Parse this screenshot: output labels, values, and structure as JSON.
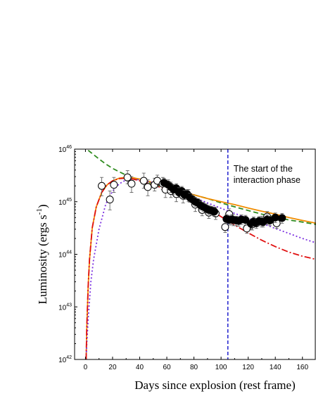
{
  "chart_data": {
    "type": "scatter",
    "title": "",
    "xlabel": "Days since explosion (rest frame)",
    "ylabel_main": "Luminosity (ergs s",
    "ylabel_sup": "-1",
    "ylabel_close": ")",
    "xlim": [
      -8,
      170
    ],
    "ylim": [
      1e+42,
      1e+46
    ],
    "yscale": "log",
    "x_ticks": [
      0,
      20,
      40,
      60,
      80,
      100,
      120,
      140,
      160
    ],
    "y_ticks": [
      {
        "value": 1e+42,
        "base": "10",
        "exp": "42"
      },
      {
        "value": 1e+43,
        "base": "10",
        "exp": "43"
      },
      {
        "value": 1e+44,
        "base": "10",
        "exp": "44"
      },
      {
        "value": 1e+45,
        "base": "10",
        "exp": "45"
      },
      {
        "value": 1e+46,
        "base": "10",
        "exp": "46"
      }
    ],
    "annotations": [
      {
        "line1": "The start of the",
        "line2": "interaction phase",
        "x": 105
      }
    ],
    "vertical_line": {
      "x": 105,
      "color": "#2a2ad0"
    },
    "series": [
      {
        "style": "line",
        "color": "#2e8b1e",
        "dash": "7,4",
        "x": [
          2,
          5,
          10,
          15,
          20,
          25,
          30,
          40,
          50,
          60,
          70,
          80,
          90,
          100,
          110,
          120,
          130,
          140,
          150,
          160,
          170
        ],
        "y": [
          9.5e+45,
          8.2e+45,
          6.5e+45,
          5.2e+45,
          4.3e+45,
          3.7e+45,
          3.2e+45,
          2.6e+45,
          2.2e+45,
          1.85e+45,
          1.6e+45,
          1.35e+45,
          1.15e+45,
          9.5e+44,
          8e+44,
          6.8e+44,
          5.8e+44,
          5.1e+44,
          4.5e+44,
          4.1e+44,
          3.7e+44
        ]
      },
      {
        "style": "line",
        "color": "#f08c00",
        "dash": "",
        "x": [
          0.5,
          1,
          2,
          3,
          5,
          8,
          12,
          16,
          20,
          25,
          30,
          35,
          40,
          45,
          50,
          55,
          60,
          70,
          80,
          90,
          100,
          110,
          120,
          130,
          140,
          150,
          160,
          170
        ],
        "y": [
          1e+42,
          4e+42,
          2.5e+43,
          8e+43,
          3.2e+44,
          8e+44,
          1.5e+45,
          2.1e+45,
          2.5e+45,
          2.8e+45,
          2.9e+45,
          2.85e+45,
          2.7e+45,
          2.5e+45,
          2.3e+45,
          2.1e+45,
          1.9e+45,
          1.6e+45,
          1.35e+45,
          1.15e+45,
          1e+45,
          8.8e+44,
          7.6e+44,
          6.6e+44,
          5.8e+44,
          5e+44,
          4.4e+44,
          3.9e+44
        ]
      },
      {
        "style": "line",
        "color": "#7b2fe0",
        "dash": "2,3",
        "x": [
          0.5,
          1,
          2,
          4,
          6,
          10,
          15,
          20,
          25,
          30,
          35,
          40,
          50,
          60,
          70,
          80,
          90,
          100,
          110,
          120,
          130,
          140,
          150,
          160,
          170
        ],
        "y": [
          1e+42,
          2e+42,
          6e+42,
          3e+43,
          8e+43,
          3e+44,
          9e+44,
          1.6e+45,
          2.2e+45,
          2.6e+45,
          2.7e+45,
          2.6e+45,
          2.3e+45,
          1.9e+45,
          1.5e+45,
          1.2e+45,
          9.5e+44,
          7.5e+44,
          6e+44,
          4.8e+44,
          3.9e+44,
          3.1e+44,
          2.5e+44,
          2e+44,
          1.65e+44
        ]
      },
      {
        "style": "line",
        "color": "#e01010",
        "dash": "9,3,2,3",
        "x": [
          0.5,
          1,
          2,
          3,
          5,
          8,
          12,
          16,
          20,
          25,
          30,
          35,
          40,
          50,
          60,
          70,
          80,
          90,
          100,
          110,
          120,
          130,
          140,
          150,
          160,
          170
        ],
        "y": [
          1e+42,
          4e+42,
          2.5e+43,
          8e+43,
          3.2e+44,
          8e+44,
          1.5e+45,
          2.1e+45,
          2.5e+45,
          2.75e+45,
          2.8e+45,
          2.7e+45,
          2.5e+45,
          2.1e+45,
          1.7e+45,
          1.35e+45,
          1.05e+45,
          7.5e+44,
          5.2e+44,
          3.6e+44,
          2.55e+44,
          1.85e+44,
          1.4e+44,
          1.1e+44,
          9.2e+43,
          8e+43
        ]
      },
      {
        "style": "open",
        "x": [
          12,
          18,
          21,
          31,
          34,
          43,
          46,
          51,
          53,
          57,
          59,
          63,
          67,
          72,
          76,
          81,
          86,
          91,
          96,
          103,
          106,
          109,
          119,
          123,
          130,
          134,
          141
        ],
        "y": [
          2e+45,
          1.1e+45,
          2.1e+45,
          2.9e+45,
          2.2e+45,
          2.5e+45,
          1.9e+45,
          2.1e+45,
          2.5e+45,
          2.2e+45,
          1.7e+45,
          1.6e+45,
          1.4e+45,
          1.3e+45,
          1.3e+45,
          8.8e+44,
          7e+44,
          6.2e+44,
          6e+44,
          3.3e+44,
          5.8e+44,
          4.5e+44,
          3.1e+44,
          3.7e+44,
          4.2e+44,
          5.2e+44,
          3.9e+44
        ],
        "yerr_low": [
          1.3e+45,
          7e+44,
          1.5e+45,
          2.2e+45,
          1.5e+45,
          1.8e+45,
          1.3e+45,
          1.6e+45,
          1.9e+45,
          1.7e+45,
          1.2e+45,
          1.2e+45,
          1e+45,
          9.5e+44,
          1e+45,
          6.5e+44,
          5.4e+44,
          4.8e+44,
          4.6e+44,
          2.6e+44,
          4.6e+44,
          3.5e+44,
          2.5e+44,
          2.9e+44,
          3.3e+44,
          4.1e+44,
          3.1e+44
        ],
        "yerr_high": [
          2.9e+45,
          1.6e+45,
          2.9e+45,
          3.9e+45,
          3e+45,
          3.5e+45,
          2.6e+45,
          2.8e+45,
          3.2e+45,
          2.9e+45,
          2.3e+45,
          2.1e+45,
          1.85e+45,
          1.7e+45,
          1.7e+45,
          1.15e+45,
          9e+44,
          8e+44,
          7.8e+44,
          4.2e+44,
          7.3e+44,
          5.7e+44,
          3.9e+44,
          4.7e+44,
          5.3e+44,
          6.5e+44,
          4.9e+44
        ]
      },
      {
        "style": "filled",
        "x": [
          58,
          61,
          63,
          65,
          67,
          69,
          71,
          73,
          75,
          77,
          79,
          81,
          83,
          85,
          87,
          89,
          91,
          93,
          95,
          104,
          106,
          108,
          111,
          113,
          115,
          118,
          122,
          124,
          126,
          128,
          131,
          134,
          136,
          140,
          145
        ],
        "y": [
          2.3e+45,
          2.1e+45,
          1.9e+45,
          1.7e+45,
          1.8e+45,
          1.5e+45,
          1.6e+45,
          1.35e+45,
          1.4e+45,
          1.2e+45,
          1.1e+45,
          1e+45,
          9.5e+44,
          8.5e+44,
          8e+44,
          7.5e+44,
          7e+44,
          6.8e+44,
          6.5e+44,
          4.7e+44,
          4.5e+44,
          4.6e+44,
          4.4e+44,
          4.3e+44,
          4.6e+44,
          4.5e+44,
          3.8e+44,
          4.2e+44,
          3.9e+44,
          4.3e+44,
          4.1e+44,
          4.6e+44,
          4.4e+44,
          5e+44,
          4.9e+44
        ],
        "yerr_low": [
          1.9e+45,
          1.7e+45,
          1.5e+45,
          1.35e+45,
          1.45e+45,
          1.2e+45,
          1.3e+45,
          1.1e+45,
          1.15e+45,
          9.8e+44,
          9e+44,
          8.2e+44,
          7.8e+44,
          7e+44,
          6.6e+44,
          6.1e+44,
          5.7e+44,
          5.5e+44,
          5.3e+44,
          3.8e+44,
          3.6e+44,
          3.7e+44,
          3.5e+44,
          3.4e+44,
          3.7e+44,
          3.6e+44,
          3e+44,
          3.4e+44,
          3.1e+44,
          3.5e+44,
          3.3e+44,
          3.7e+44,
          3.5e+44,
          4e+44,
          3.9e+44
        ],
        "yerr_high": [
          2.8e+45,
          2.6e+45,
          2.35e+45,
          2.1e+45,
          2.2e+45,
          1.85e+45,
          1.95e+45,
          1.65e+45,
          1.7e+45,
          1.45e+45,
          1.35e+45,
          1.2e+45,
          1.15e+45,
          1.03e+45,
          9.7e+44,
          9.1e+44,
          8.5e+44,
          8.2e+44,
          7.9e+44,
          5.7e+44,
          5.5e+44,
          5.6e+44,
          5.3e+44,
          5.2e+44,
          5.6e+44,
          5.5e+44,
          4.6e+44,
          5.1e+44,
          4.7e+44,
          5.2e+44,
          5e+44,
          5.6e+44,
          5.3e+44,
          6.1e+44,
          6e+44
        ]
      }
    ]
  }
}
